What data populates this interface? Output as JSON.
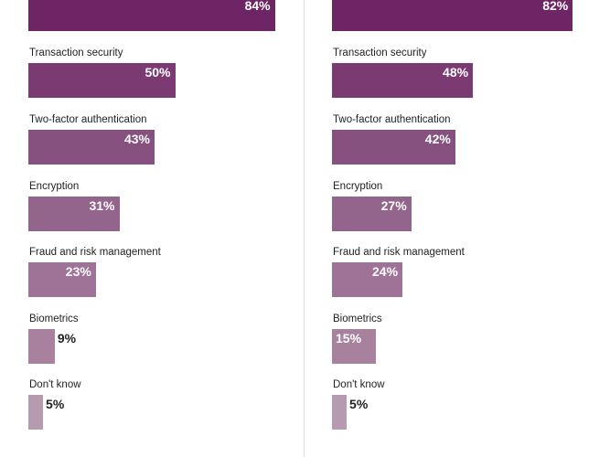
{
  "chart_data": [
    {
      "type": "bar",
      "orientation": "horizontal",
      "categories": [
        "",
        "Transaction security",
        "Two-factor authentication",
        "Encryption",
        "Fraud and risk management",
        "Biometrics",
        "Don't know"
      ],
      "values": [
        84,
        50,
        43,
        31,
        23,
        9,
        5
      ],
      "value_labels": [
        "84%",
        "50%",
        "43%",
        "31%",
        "23%",
        "9%",
        "5%"
      ],
      "xlim": [
        0,
        100
      ]
    },
    {
      "type": "bar",
      "orientation": "horizontal",
      "categories": [
        "",
        "Transaction security",
        "Two-factor authentication",
        "Encryption",
        "Fraud and risk management",
        "Biometrics",
        "Don't know"
      ],
      "values": [
        82,
        48,
        42,
        27,
        24,
        15,
        5
      ],
      "value_labels": [
        "82%",
        "48%",
        "42%",
        "27%",
        "24%",
        "15%",
        "5%"
      ],
      "xlim": [
        0,
        100
      ]
    }
  ],
  "bar_colors": [
    "#6d2566",
    "#7b3a72",
    "#86507f",
    "#93648c",
    "#9e7397",
    "#a8819f",
    "#b69ab0"
  ]
}
